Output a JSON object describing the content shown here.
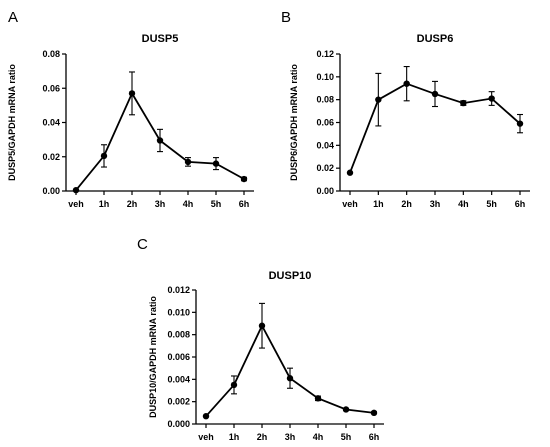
{
  "chart_data": [
    {
      "panel": "A",
      "type": "line",
      "title": "DUSP5",
      "xlabel": "",
      "ylabel": "DUSP5/GAPDH mRNA ratio",
      "categories": [
        "veh",
        "1h",
        "2h",
        "3h",
        "4h",
        "5h",
        "6h"
      ],
      "values": [
        0.0005,
        0.0205,
        0.057,
        0.0295,
        0.017,
        0.016,
        0.007
      ],
      "error": [
        0.0,
        0.0065,
        0.0125,
        0.0065,
        0.0025,
        0.0035,
        0.001
      ],
      "ylim": [
        0,
        0.08
      ],
      "yticks": [
        0.0,
        0.02,
        0.04,
        0.06,
        0.08
      ],
      "ytick_labels": [
        "0.00",
        "0.02",
        "0.04",
        "0.06",
        "0.08"
      ],
      "grid": false,
      "color": "#000000"
    },
    {
      "panel": "B",
      "type": "line",
      "title": "DUSP6",
      "xlabel": "",
      "ylabel": "DUSP6/GAPDH mRNA ratio",
      "categories": [
        "veh",
        "1h",
        "2h",
        "3h",
        "4h",
        "5h",
        "6h"
      ],
      "values": [
        0.016,
        0.08,
        0.094,
        0.085,
        0.077,
        0.081,
        0.059
      ],
      "error": [
        0.0,
        0.023,
        0.015,
        0.011,
        0.002,
        0.006,
        0.008
      ],
      "ylim": [
        0,
        0.12
      ],
      "yticks": [
        0.0,
        0.02,
        0.04,
        0.06,
        0.08,
        0.1,
        0.12
      ],
      "ytick_labels": [
        "0.00",
        "0.02",
        "0.04",
        "0.06",
        "0.08",
        "0.10",
        "0.12"
      ],
      "grid": false,
      "color": "#000000"
    },
    {
      "panel": "C",
      "type": "line",
      "title": "DUSP10",
      "xlabel": "",
      "ylabel": "DUSP10/GAPDH mRNA ratio",
      "categories": [
        "veh",
        "1h",
        "2h",
        "3h",
        "4h",
        "5h",
        "6h"
      ],
      "values": [
        0.0007,
        0.0035,
        0.0088,
        0.0041,
        0.0023,
        0.0013,
        0.001
      ],
      "error": [
        0.0,
        0.0008,
        0.002,
        0.0009,
        0.0002,
        0.0001,
        0.0001
      ],
      "ylim": [
        0,
        0.012
      ],
      "yticks": [
        0.0,
        0.002,
        0.004,
        0.006,
        0.008,
        0.01,
        0.012
      ],
      "ytick_labels": [
        "0.000",
        "0.002",
        "0.004",
        "0.006",
        "0.008",
        "0.010",
        "0.012"
      ],
      "grid": false,
      "color": "#000000"
    }
  ]
}
